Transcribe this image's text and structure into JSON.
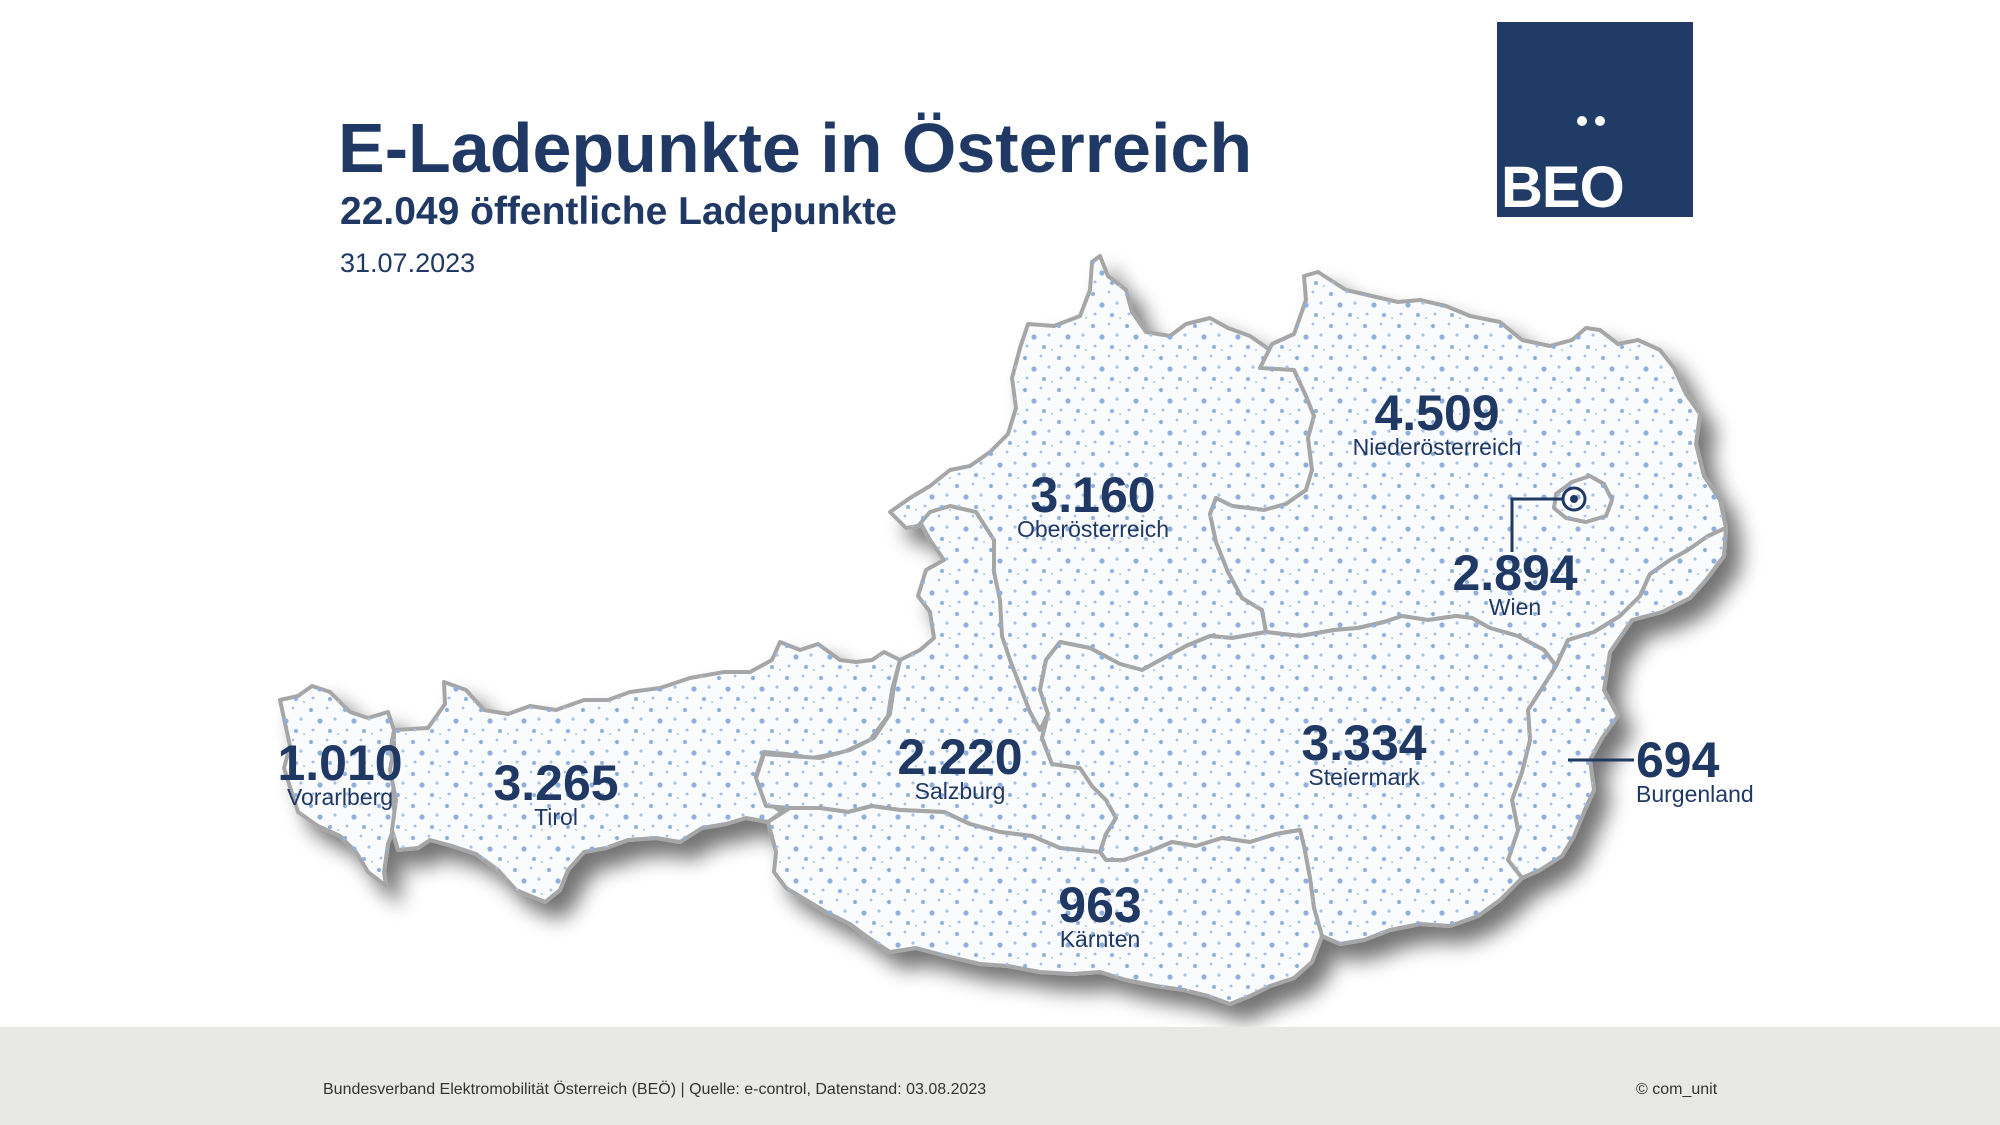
{
  "title": "E-Ladepunkte in Österreich",
  "subtitle": "22.049 öffentliche Ladepunkte",
  "date": "31.07.2023",
  "logo": {
    "text": "BEO"
  },
  "regions": {
    "vorarlberg": {
      "name": "Vorarlberg",
      "value": "1.010"
    },
    "tirol": {
      "name": "Tirol",
      "value": "3.265"
    },
    "salzburg": {
      "name": "Salzburg",
      "value": "2.220"
    },
    "oberoesterreich": {
      "name": "Oberösterreich",
      "value": "3.160"
    },
    "niederoesterreich": {
      "name": "Niederösterreich",
      "value": "4.509"
    },
    "wien": {
      "name": "Wien",
      "value": "2.894"
    },
    "steiermark": {
      "name": "Steiermark",
      "value": "3.334"
    },
    "burgenland": {
      "name": "Burgenland",
      "value": "694"
    },
    "kaernten": {
      "name": "Kärnten",
      "value": "963"
    }
  },
  "footer": {
    "source": "Bundesverband Elektromobilität Österreich (BEÖ) | Quelle: e-control, Datenstand: 03.08.2023",
    "copyright": "© com_unit"
  },
  "colors": {
    "primary": "#1f3864",
    "logo_bg": "#1f3b66",
    "map_fill": "#fafbfd",
    "map_border": "#a6a6a6",
    "dots": "#8fb0de",
    "footer_bg": "#e8e8e6"
  }
}
